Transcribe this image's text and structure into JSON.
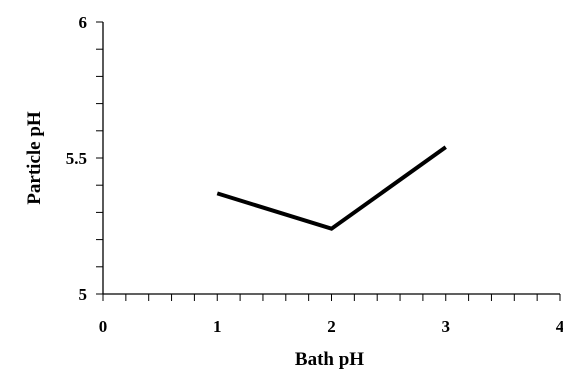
{
  "chart_data": {
    "type": "line",
    "title": "",
    "xlabel": "Bath pH",
    "ylabel": "Particle pH",
    "xlim": [
      0,
      4
    ],
    "ylim": [
      5,
      6
    ],
    "x_ticks": [
      0,
      1,
      2,
      3,
      4
    ],
    "x_tick_labels": [
      "0",
      "1",
      "2",
      "3",
      "4"
    ],
    "x_minor_step": 0.2,
    "y_ticks": [
      5,
      5.5,
      6
    ],
    "y_tick_labels": [
      "5",
      "5.5",
      "6"
    ],
    "y_minor_step": 0.1,
    "grid": false,
    "legend": "none",
    "series": [
      {
        "x": [
          1,
          2,
          3
        ],
        "y": [
          5.37,
          5.24,
          5.54
        ],
        "color": "#000000"
      }
    ]
  }
}
